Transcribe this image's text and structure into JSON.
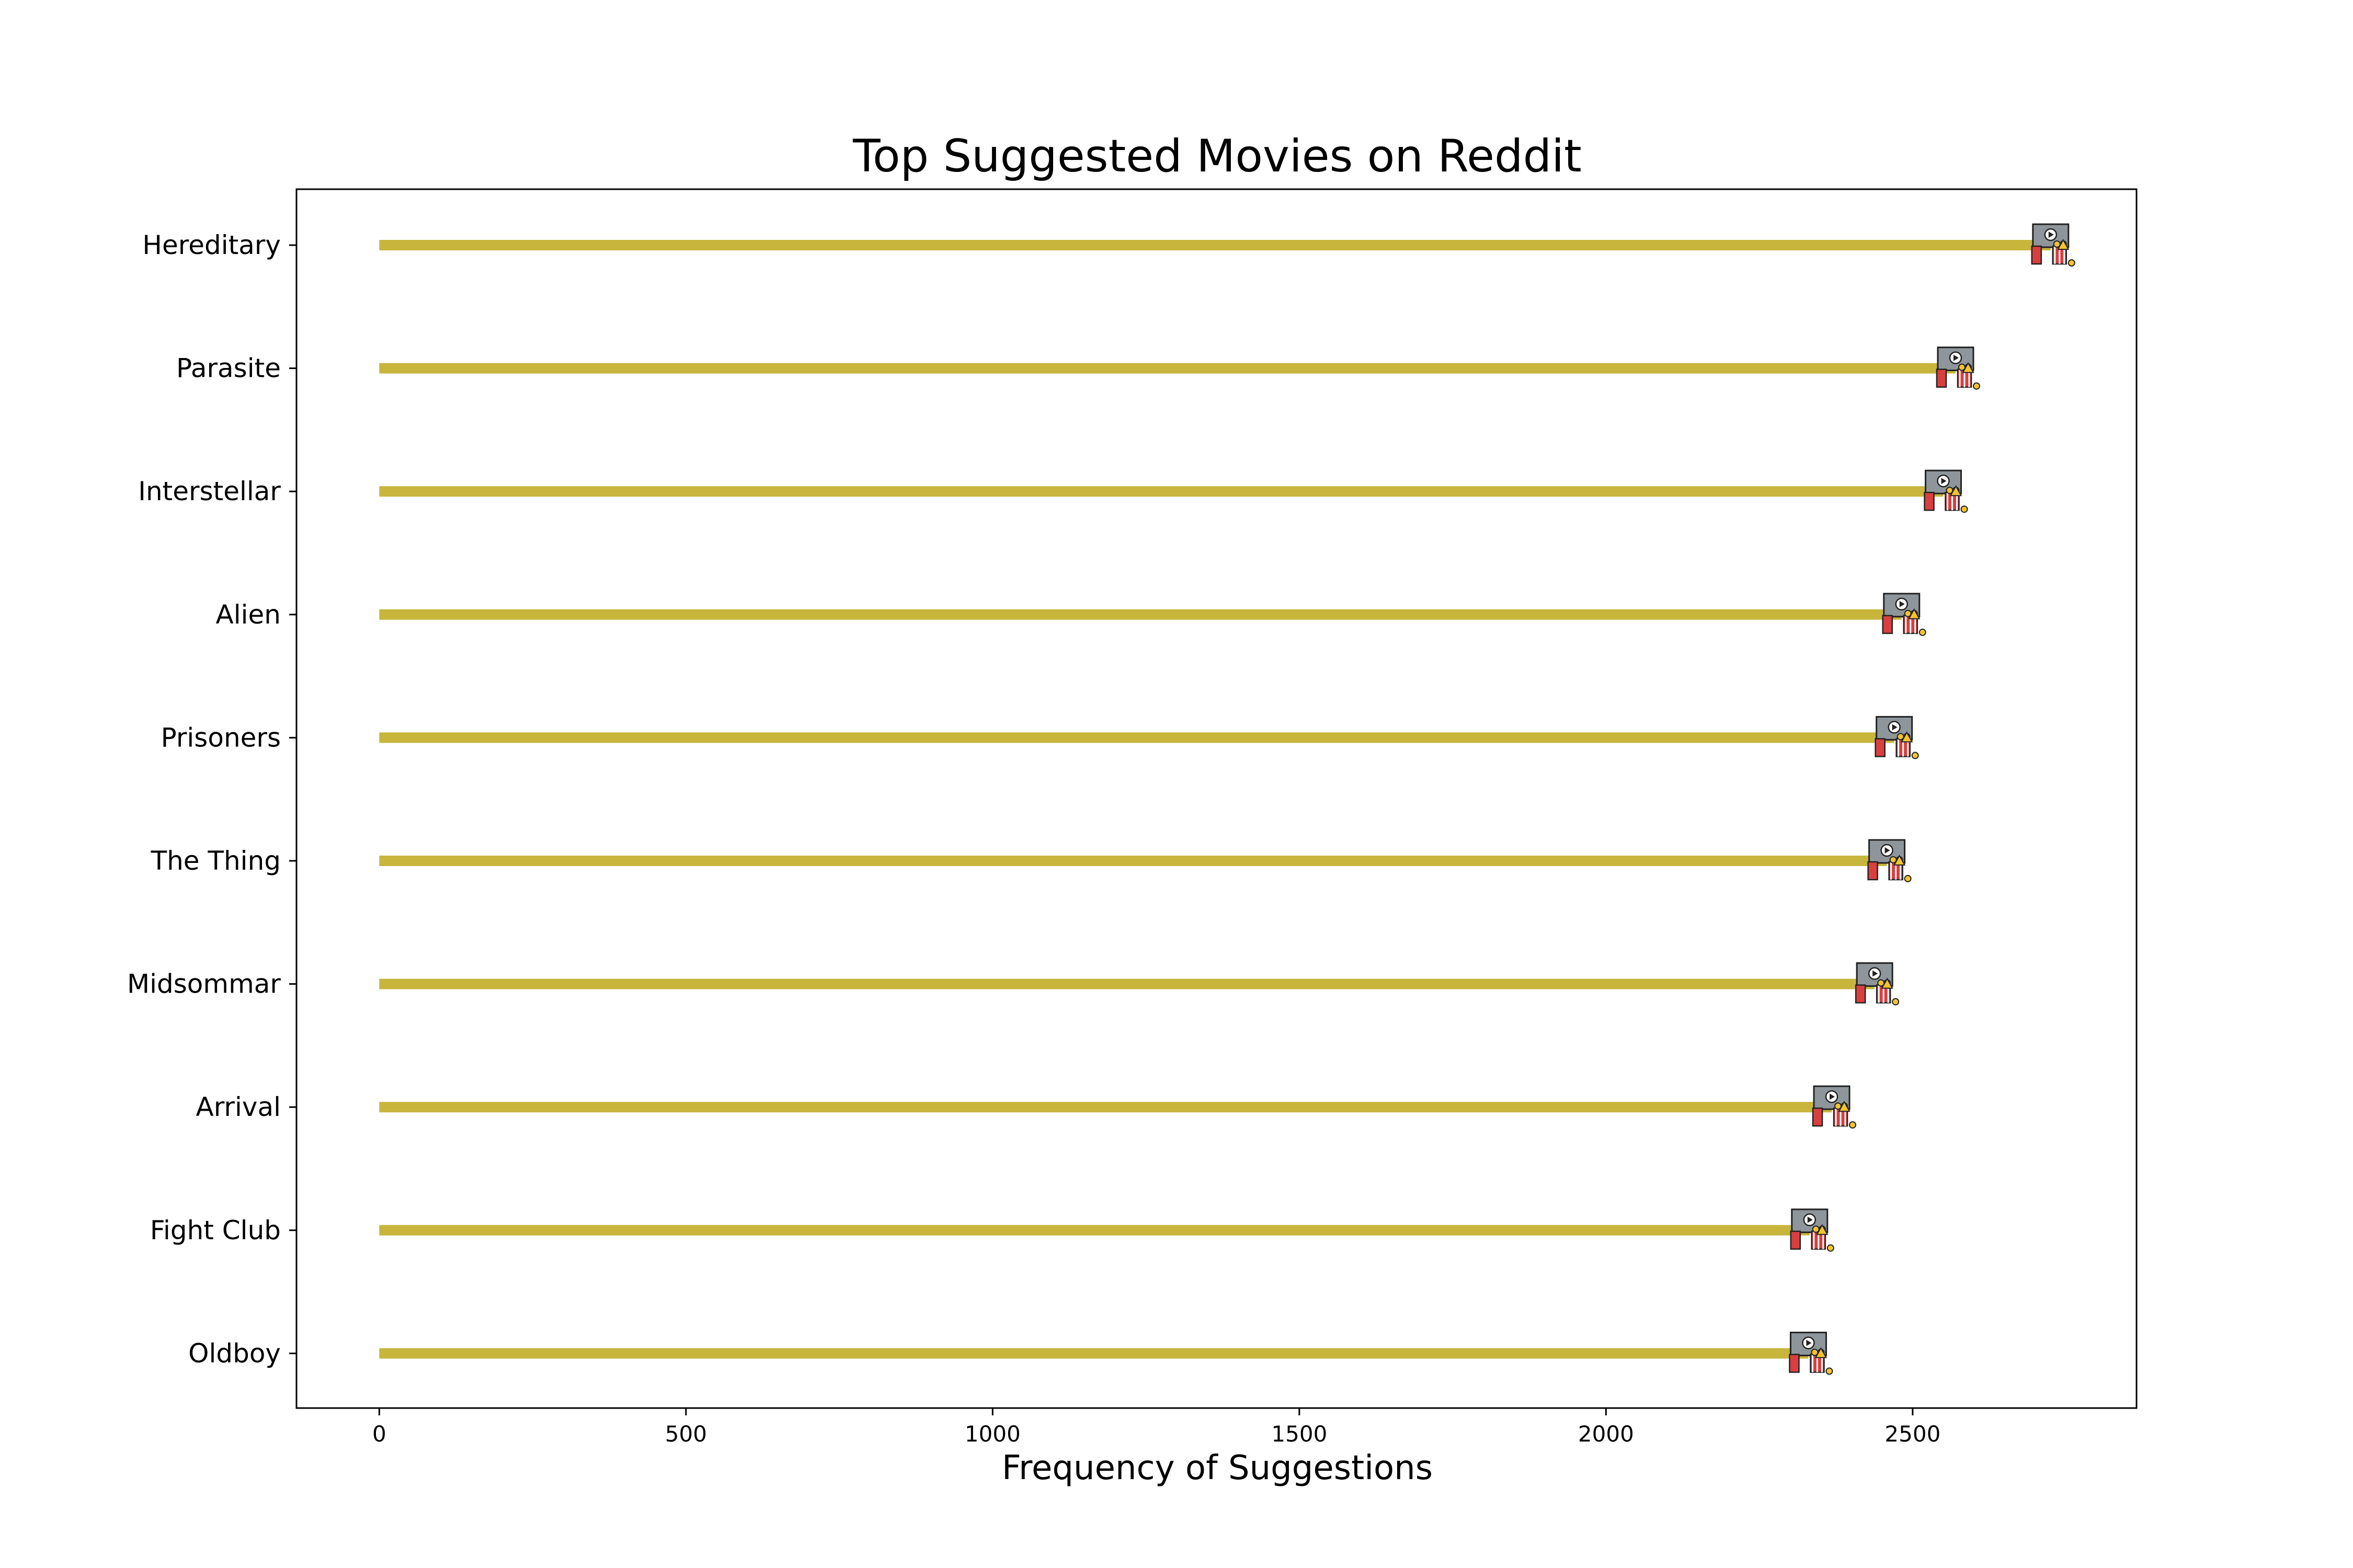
{
  "chart_data": {
    "type": "bar",
    "orientation": "horizontal",
    "title": "Top Suggested Movies on Reddit",
    "xlabel": "Frequency of Suggestions",
    "ylabel": "",
    "categories": [
      "Hereditary",
      "Parasite",
      "Interstellar",
      "Alien",
      "Prisoners",
      "The Thing",
      "Midsommar",
      "Arrival",
      "Fight Club",
      "Oldboy"
    ],
    "values": [
      2725,
      2570,
      2550,
      2482,
      2470,
      2458,
      2438,
      2368,
      2332,
      2330
    ],
    "xlim": [
      -135,
      2865
    ],
    "xticks": [
      0,
      500,
      1000,
      1500,
      2000,
      2500
    ],
    "xtick_labels": [
      "0",
      "500",
      "1000",
      "1500",
      "2000",
      "2500"
    ],
    "grid": false,
    "legend": "none",
    "marker_icon": "movie-cinema-icon",
    "colors": {
      "bar": "#c8b53c",
      "axis": "#000000",
      "icon_screen": "#8e969b",
      "icon_seat": "#d93f3f",
      "icon_popcorn": "#f4c430"
    }
  }
}
